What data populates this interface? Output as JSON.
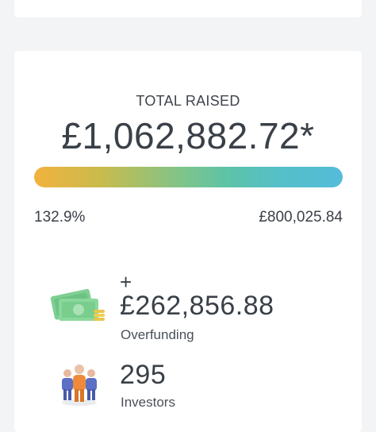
{
  "funding": {
    "total_label": "TOTAL RAISED",
    "total_amount": "£1,062,882.72*",
    "progress_fraction": 1.0,
    "percent_label": "132.9%",
    "target_amount": "£800,025.84"
  },
  "overfunding": {
    "plus_sign": "+",
    "amount": "£262,856.88",
    "label": "Overfunding",
    "icon": "money-icon"
  },
  "investors": {
    "count": "295",
    "label": "Investors",
    "icon": "people-icon"
  },
  "colors": {
    "gradient_start": "#f2b23d",
    "gradient_mid": "#5ec3a6",
    "gradient_end": "#54bcd9",
    "text": "#3a4048"
  }
}
